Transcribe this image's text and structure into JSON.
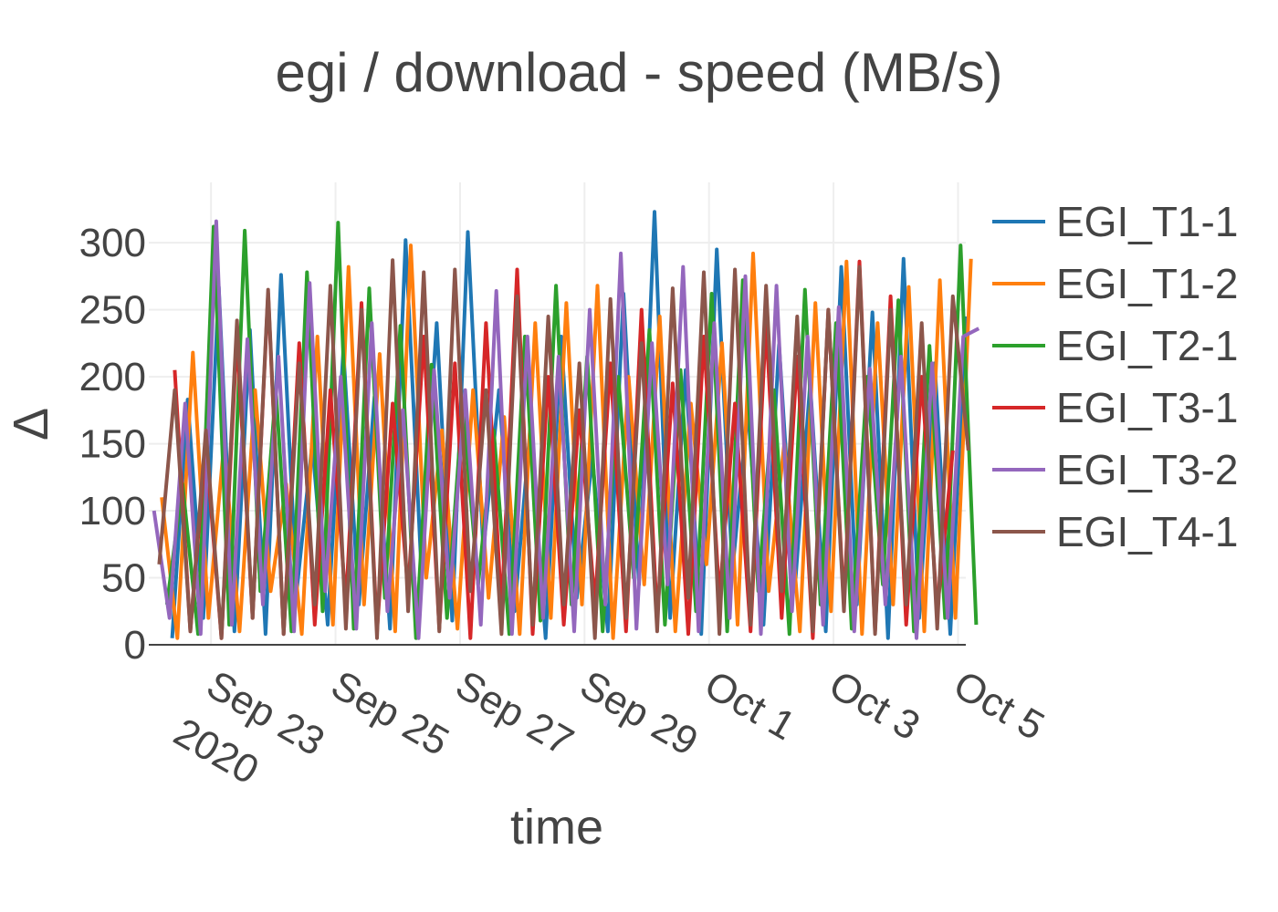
{
  "chart_data": {
    "type": "line",
    "title": "egi / download - speed (MB/s)",
    "xlabel": "time",
    "ylabel": "Δ",
    "x_range": [
      "2020-09-22",
      "2020-10-05"
    ],
    "ylim": [
      0,
      345
    ],
    "x_ticks": [
      {
        "date": "2020-09-23",
        "label": "Sep 23",
        "sublabel": "2020"
      },
      {
        "date": "2020-09-25",
        "label": "Sep 25",
        "sublabel": ""
      },
      {
        "date": "2020-09-27",
        "label": "Sep 27",
        "sublabel": ""
      },
      {
        "date": "2020-09-29",
        "label": "Sep 29",
        "sublabel": ""
      },
      {
        "date": "2020-10-01",
        "label": "Oct 1",
        "sublabel": ""
      },
      {
        "date": "2020-10-03",
        "label": "Oct 3",
        "sublabel": ""
      },
      {
        "date": "2020-10-05",
        "label": "Oct 5",
        "sublabel": ""
      }
    ],
    "y_ticks": [
      0,
      50,
      100,
      150,
      200,
      250,
      300
    ],
    "grid": true,
    "legend_position": "right",
    "series": [
      {
        "name": "EGI_T1-1",
        "color": "#1f77b4",
        "x": [
          "2020-09-22T09:00",
          "2020-09-22T15:00",
          "2020-09-22T21:00",
          "2020-09-23T03:00",
          "2020-09-23T09:00",
          "2020-09-23T15:00",
          "2020-09-23T21:00",
          "2020-09-24T03:00",
          "2020-09-24T09:00",
          "2020-09-24T15:00",
          "2020-09-24T21:00",
          "2020-09-25T03:00",
          "2020-09-25T09:00",
          "2020-09-25T15:00",
          "2020-09-25T21:00",
          "2020-09-26T03:00",
          "2020-09-26T09:00",
          "2020-09-26T15:00",
          "2020-09-26T21:00",
          "2020-09-27T03:00",
          "2020-09-27T09:00",
          "2020-09-27T15:00",
          "2020-09-27T21:00",
          "2020-09-28T03:00",
          "2020-09-28T09:00",
          "2020-09-28T15:00",
          "2020-09-28T21:00",
          "2020-09-29T03:00",
          "2020-09-29T09:00",
          "2020-09-29T15:00",
          "2020-09-29T21:00",
          "2020-09-30T03:00",
          "2020-09-30T09:00",
          "2020-09-30T15:00",
          "2020-09-30T21:00",
          "2020-10-01T03:00",
          "2020-10-01T09:00",
          "2020-10-01T15:00",
          "2020-10-01T21:00",
          "2020-10-02T03:00",
          "2020-10-02T09:00",
          "2020-10-02T15:00",
          "2020-10-02T21:00",
          "2020-10-03T03:00",
          "2020-10-03T09:00",
          "2020-10-03T15:00",
          "2020-10-03T21:00",
          "2020-10-04T03:00",
          "2020-10-04T09:00",
          "2020-10-04T15:00",
          "2020-10-04T21:00",
          "2020-10-05T03:00"
        ],
        "values": [
          5,
          183,
          20,
          267,
          10,
          235,
          8,
          276,
          40,
          150,
          15,
          220,
          30,
          185,
          12,
          302,
          60,
          240,
          18,
          308,
          70,
          190,
          25,
          160,
          5,
          230,
          35,
          140,
          10,
          262,
          45,
          323,
          20,
          205,
          8,
          295,
          55,
          176,
          15,
          224,
          40,
          195,
          10,
          282,
          30,
          248,
          5,
          288,
          20,
          210,
          8,
          245
        ]
      },
      {
        "name": "EGI_T1-2",
        "color": "#ff7f0e",
        "x": [
          "2020-09-22T05:00",
          "2020-09-22T11:00",
          "2020-09-22T17:00",
          "2020-09-22T23:00",
          "2020-09-23T05:00",
          "2020-09-23T11:00",
          "2020-09-23T17:00",
          "2020-09-23T23:00",
          "2020-09-24T05:00",
          "2020-09-24T11:00",
          "2020-09-24T17:00",
          "2020-09-24T23:00",
          "2020-09-25T05:00",
          "2020-09-25T11:00",
          "2020-09-25T17:00",
          "2020-09-25T23:00",
          "2020-09-26T05:00",
          "2020-09-26T11:00",
          "2020-09-26T17:00",
          "2020-09-26T23:00",
          "2020-09-27T05:00",
          "2020-09-27T11:00",
          "2020-09-27T17:00",
          "2020-09-27T23:00",
          "2020-09-28T05:00",
          "2020-09-28T11:00",
          "2020-09-28T17:00",
          "2020-09-28T23:00",
          "2020-09-29T05:00",
          "2020-09-29T11:00",
          "2020-09-29T17:00",
          "2020-09-29T23:00",
          "2020-09-30T05:00",
          "2020-09-30T11:00",
          "2020-09-30T17:00",
          "2020-09-30T23:00",
          "2020-10-01T05:00",
          "2020-10-01T11:00",
          "2020-10-01T17:00",
          "2020-10-01T23:00",
          "2020-10-02T05:00",
          "2020-10-02T11:00",
          "2020-10-02T17:00",
          "2020-10-02T23:00",
          "2020-10-03T05:00",
          "2020-10-03T11:00",
          "2020-10-03T17:00",
          "2020-10-03T23:00",
          "2020-10-04T05:00",
          "2020-10-04T11:00",
          "2020-10-04T17:00",
          "2020-10-04T23:00",
          "2020-10-05T05:00"
        ],
        "values": [
          110,
          5,
          218,
          20,
          150,
          10,
          190,
          40,
          120,
          8,
          230,
          15,
          282,
          30,
          217,
          10,
          298,
          50,
          160,
          12,
          190,
          35,
          170,
          8,
          240,
          20,
          255,
          30,
          268,
          5,
          200,
          45,
          245,
          10,
          180,
          60,
          225,
          15,
          292,
          40,
          150,
          10,
          255,
          25,
          286,
          8,
          240,
          30,
          267,
          10,
          272,
          20,
          288
        ]
      },
      {
        "name": "EGI_T2-1",
        "color": "#2ca02c",
        "x": [
          "2020-09-22T07:00",
          "2020-09-22T13:00",
          "2020-09-22T19:00",
          "2020-09-23T01:00",
          "2020-09-23T07:00",
          "2020-09-23T13:00",
          "2020-09-23T19:00",
          "2020-09-24T01:00",
          "2020-09-24T07:00",
          "2020-09-24T13:00",
          "2020-09-24T19:00",
          "2020-09-25T01:00",
          "2020-09-25T07:00",
          "2020-09-25T13:00",
          "2020-09-25T19:00",
          "2020-09-26T01:00",
          "2020-09-26T07:00",
          "2020-09-26T13:00",
          "2020-09-26T19:00",
          "2020-09-27T01:00",
          "2020-09-27T07:00",
          "2020-09-27T13:00",
          "2020-09-27T19:00",
          "2020-09-28T01:00",
          "2020-09-28T07:00",
          "2020-09-28T13:00",
          "2020-09-28T19:00",
          "2020-09-29T01:00",
          "2020-09-29T07:00",
          "2020-09-29T13:00",
          "2020-09-29T19:00",
          "2020-09-30T01:00",
          "2020-09-30T07:00",
          "2020-09-30T13:00",
          "2020-09-30T19:00",
          "2020-10-01T01:00",
          "2020-10-01T07:00",
          "2020-10-01T13:00",
          "2020-10-01T19:00",
          "2020-10-02T01:00",
          "2020-10-02T07:00",
          "2020-10-02T13:00",
          "2020-10-02T19:00",
          "2020-10-03T01:00",
          "2020-10-03T07:00",
          "2020-10-03T13:00",
          "2020-10-03T19:00",
          "2020-10-04T01:00",
          "2020-10-04T07:00",
          "2020-10-04T13:00",
          "2020-10-04T19:00",
          "2020-10-05T01:00",
          "2020-10-05T07:00"
        ],
        "values": [
          30,
          120,
          8,
          312,
          15,
          309,
          40,
          190,
          10,
          278,
          25,
          315,
          12,
          266,
          35,
          238,
          5,
          209,
          20,
          180,
          45,
          160,
          8,
          230,
          18,
          268,
          30,
          215,
          10,
          200,
          50,
          235,
          15,
          205,
          25,
          262,
          10,
          272,
          40,
          190,
          8,
          265,
          30,
          240,
          12,
          200,
          45,
          257,
          10,
          223,
          20,
          298,
          15
        ]
      },
      {
        "name": "EGI_T3-1",
        "color": "#d62728",
        "x": [
          "2020-09-22T10:00",
          "2020-09-22T16:00",
          "2020-09-22T22:00",
          "2020-09-23T04:00",
          "2020-09-23T10:00",
          "2020-09-23T16:00",
          "2020-09-23T22:00",
          "2020-09-24T04:00",
          "2020-09-24T10:00",
          "2020-09-24T16:00",
          "2020-09-24T22:00",
          "2020-09-25T04:00",
          "2020-09-25T10:00",
          "2020-09-25T16:00",
          "2020-09-25T22:00",
          "2020-09-26T04:00",
          "2020-09-26T10:00",
          "2020-09-26T16:00",
          "2020-09-26T22:00",
          "2020-09-27T04:00",
          "2020-09-27T10:00",
          "2020-09-27T16:00",
          "2020-09-27T22:00",
          "2020-09-28T04:00",
          "2020-09-28T10:00",
          "2020-09-28T16:00",
          "2020-09-28T22:00",
          "2020-09-29T04:00",
          "2020-09-29T10:00",
          "2020-09-29T16:00",
          "2020-09-29T22:00",
          "2020-09-30T04:00",
          "2020-09-30T10:00",
          "2020-09-30T16:00",
          "2020-09-30T22:00",
          "2020-10-01T04:00",
          "2020-10-01T10:00",
          "2020-10-01T16:00",
          "2020-10-01T22:00",
          "2020-10-02T04:00",
          "2020-10-02T10:00",
          "2020-10-02T16:00",
          "2020-10-02T22:00",
          "2020-10-03T04:00",
          "2020-10-03T10:00",
          "2020-10-03T16:00",
          "2020-10-03T22:00",
          "2020-10-04T04:00",
          "2020-10-04T10:00",
          "2020-10-04T16:00",
          "2020-10-04T22:00"
        ],
        "values": [
          205,
          10,
          150,
          5,
          230,
          20,
          262,
          8,
          225,
          15,
          190,
          30,
          255,
          10,
          180,
          40,
          230,
          12,
          210,
          5,
          240,
          25,
          280,
          8,
          200,
          15,
          175,
          30,
          210,
          10,
          250,
          20,
          195,
          8,
          230,
          35,
          180,
          10,
          240,
          20,
          215,
          5,
          250,
          30,
          286,
          10,
          260,
          15,
          200,
          25,
          145
        ]
      },
      {
        "name": "EGI_T3-2",
        "color": "#9467bd",
        "x": [
          "2020-09-22T02:00",
          "2020-09-22T08:00",
          "2020-09-22T14:00",
          "2020-09-22T20:00",
          "2020-09-23T02:00",
          "2020-09-23T08:00",
          "2020-09-23T14:00",
          "2020-09-23T20:00",
          "2020-09-24T02:00",
          "2020-09-24T08:00",
          "2020-09-24T14:00",
          "2020-09-24T20:00",
          "2020-09-25T02:00",
          "2020-09-25T08:00",
          "2020-09-25T14:00",
          "2020-09-25T20:00",
          "2020-09-26T02:00",
          "2020-09-26T08:00",
          "2020-09-26T14:00",
          "2020-09-26T20:00",
          "2020-09-27T02:00",
          "2020-09-27T08:00",
          "2020-09-27T14:00",
          "2020-09-27T20:00",
          "2020-09-28T02:00",
          "2020-09-28T08:00",
          "2020-09-28T14:00",
          "2020-09-28T20:00",
          "2020-09-29T02:00",
          "2020-09-29T08:00",
          "2020-09-29T14:00",
          "2020-09-29T20:00",
          "2020-09-30T02:00",
          "2020-09-30T08:00",
          "2020-09-30T14:00",
          "2020-09-30T20:00",
          "2020-10-01T02:00",
          "2020-10-01T08:00",
          "2020-10-01T14:00",
          "2020-10-01T20:00",
          "2020-10-02T02:00",
          "2020-10-02T08:00",
          "2020-10-02T14:00",
          "2020-10-02T20:00",
          "2020-10-03T02:00",
          "2020-10-03T08:00",
          "2020-10-03T14:00",
          "2020-10-03T20:00",
          "2020-10-04T02:00",
          "2020-10-04T08:00",
          "2020-10-04T14:00",
          "2020-10-04T20:00",
          "2020-10-05T02:00",
          "2020-10-05T08:00"
        ],
        "values": [
          100,
          20,
          180,
          8,
          316,
          15,
          228,
          30,
          215,
          10,
          270,
          40,
          200,
          12,
          240,
          25,
          175,
          5,
          205,
          35,
          190,
          15,
          264,
          8,
          230,
          20,
          215,
          10,
          250,
          30,
          292,
          12,
          225,
          45,
          282,
          10,
          240,
          20,
          275,
          8,
          268,
          25,
          230,
          15,
          252,
          10,
          206,
          30,
          215,
          5,
          210,
          20,
          230,
          236
        ]
      },
      {
        "name": "EGI_T4-1",
        "color": "#8c564b",
        "x": [
          "2020-09-22T04:00",
          "2020-09-22T10:00",
          "2020-09-22T16:00",
          "2020-09-22T22:00",
          "2020-09-23T04:00",
          "2020-09-23T10:00",
          "2020-09-23T16:00",
          "2020-09-23T22:00",
          "2020-09-24T04:00",
          "2020-09-24T10:00",
          "2020-09-24T16:00",
          "2020-09-24T22:00",
          "2020-09-25T04:00",
          "2020-09-25T10:00",
          "2020-09-25T16:00",
          "2020-09-25T22:00",
          "2020-09-26T04:00",
          "2020-09-26T10:00",
          "2020-09-26T16:00",
          "2020-09-26T22:00",
          "2020-09-27T04:00",
          "2020-09-27T10:00",
          "2020-09-27T16:00",
          "2020-09-27T22:00",
          "2020-09-28T04:00",
          "2020-09-28T10:00",
          "2020-09-28T16:00",
          "2020-09-28T22:00",
          "2020-09-29T04:00",
          "2020-09-29T10:00",
          "2020-09-29T16:00",
          "2020-09-29T22:00",
          "2020-09-30T04:00",
          "2020-09-30T10:00",
          "2020-09-30T16:00",
          "2020-09-30T22:00",
          "2020-10-01T04:00",
          "2020-10-01T10:00",
          "2020-10-01T16:00",
          "2020-10-01T22:00",
          "2020-10-02T04:00",
          "2020-10-02T10:00",
          "2020-10-02T16:00",
          "2020-10-02T22:00",
          "2020-10-03T04:00",
          "2020-10-03T10:00",
          "2020-10-03T16:00",
          "2020-10-03T22:00",
          "2020-10-04T04:00",
          "2020-10-04T10:00",
          "2020-10-04T16:00",
          "2020-10-04T22:00",
          "2020-10-05T04:00"
        ],
        "values": [
          60,
          190,
          10,
          160,
          5,
          242,
          20,
          265,
          8,
          210,
          30,
          268,
          12,
          250,
          5,
          287,
          25,
          278,
          10,
          280,
          40,
          190,
          8,
          260,
          15,
          245,
          30,
          210,
          5,
          258,
          20,
          225,
          10,
          266,
          35,
          278,
          8,
          280,
          15,
          268,
          40,
          245,
          10,
          250,
          25,
          282,
          8,
          250,
          30,
          240,
          12,
          260,
          145
        ]
      }
    ]
  }
}
